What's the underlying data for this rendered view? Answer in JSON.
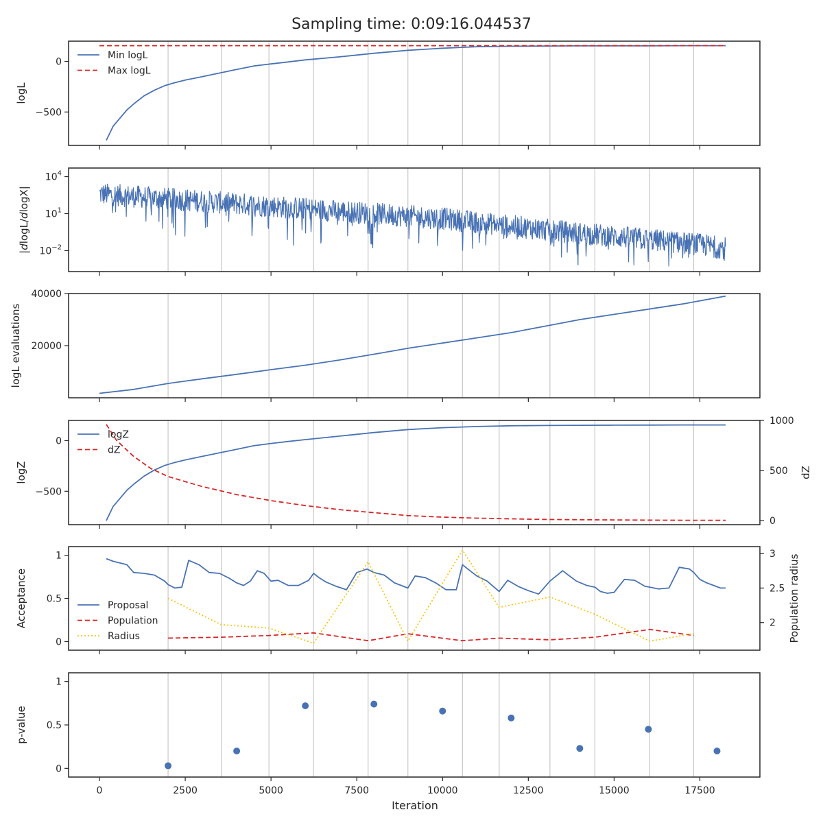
{
  "title": "Sampling time: 0:09:16.044537",
  "x_axis": {
    "label": "Iteration",
    "range": [
      -900,
      19250
    ],
    "ticks": [
      0,
      2500,
      5000,
      7500,
      10000,
      12500,
      15000,
      17500
    ]
  },
  "vlines": [
    2000,
    3550,
    4940,
    6240,
    7830,
    8990,
    10580,
    11650,
    13130,
    14440,
    16040,
    17320
  ],
  "colors": {
    "blue": "#4872b4",
    "red": "#d62728",
    "yellow": "#f5c518",
    "grid": "#c8c8c8",
    "frame": "#262626"
  },
  "chart_data": [
    {
      "type": "line",
      "ylabel": "logL",
      "ylim": [
        -830,
        200
      ],
      "yticks": [
        0,
        -500
      ],
      "legend": "top-left",
      "series": [
        {
          "name": "Min logL",
          "style": "solid",
          "color": "#4872b4",
          "x": [
            200,
            400,
            800,
            1000,
            1300,
            1600,
            1900,
            2200,
            2500,
            3000,
            3500,
            4000,
            4500,
            5000,
            5500,
            6000,
            7000,
            8000,
            9000,
            10000,
            11000,
            12000,
            13000,
            14000,
            15000,
            16000,
            17000,
            18250
          ],
          "y": [
            -780,
            -640,
            -480,
            -420,
            -340,
            -285,
            -240,
            -210,
            -185,
            -150,
            -115,
            -80,
            -45,
            -25,
            -5,
            15,
            45,
            80,
            110,
            130,
            145,
            150,
            152,
            153,
            154,
            154,
            155,
            155
          ]
        },
        {
          "name": "Max logL",
          "style": "dashed",
          "color": "#d62728",
          "x": [
            0,
            18250
          ],
          "y": [
            155,
            155
          ]
        }
      ]
    },
    {
      "type": "line",
      "ylabel": "|dlogL/dlogX|",
      "yscale": "log",
      "ylim_log10": [
        -3.7,
        4.7
      ],
      "yticks": [
        "10^4",
        "10^1",
        "10^-2"
      ],
      "series": [
        {
          "name": "",
          "style": "noisy",
          "color": "#4872b4",
          "x": [
            0,
            2000,
            4000,
            6000,
            8000,
            10000,
            12000,
            14000,
            16000,
            17500,
            18250
          ],
          "y_center_log10": [
            2.6,
            2.2,
            1.8,
            1.4,
            1.0,
            0.6,
            0.0,
            -0.6,
            -1.1,
            -1.5,
            -1.8
          ]
        }
      ]
    },
    {
      "type": "line",
      "ylabel": "logL evaluations",
      "ylim": [
        0,
        40000
      ],
      "yticks": [
        40000,
        20000
      ],
      "series": [
        {
          "name": "",
          "style": "solid",
          "color": "#4872b4",
          "x": [
            0,
            1000,
            2000,
            3000,
            4000,
            5000,
            6000,
            7000,
            8000,
            9000,
            10000,
            11000,
            12000,
            13000,
            14000,
            15000,
            16000,
            17000,
            18250
          ],
          "y": [
            1700,
            3200,
            5500,
            7300,
            9000,
            10800,
            12500,
            14500,
            16700,
            19000,
            21000,
            23000,
            25000,
            27500,
            30000,
            32000,
            34000,
            36000,
            39000
          ]
        }
      ]
    },
    {
      "type": "line",
      "ylabel": "logZ",
      "ylabel_right": "dZ",
      "ylim": [
        -830,
        200
      ],
      "ylim_right": [
        -40,
        1000
      ],
      "yticks": [
        0,
        -500
      ],
      "yticks_right": [
        1000,
        500,
        0
      ],
      "legend": "top-left",
      "series": [
        {
          "name": "logZ",
          "style": "solid",
          "color": "#4872b4",
          "axis": "left",
          "x": [
            200,
            400,
            800,
            1000,
            1300,
            1600,
            1900,
            2200,
            2500,
            3000,
            3500,
            4000,
            4500,
            5000,
            5500,
            6000,
            7000,
            8000,
            9000,
            10000,
            11000,
            12000,
            13000,
            14000,
            15000,
            16000,
            17000,
            18250
          ],
          "y": [
            -790,
            -650,
            -490,
            -430,
            -350,
            -290,
            -245,
            -215,
            -190,
            -155,
            -120,
            -85,
            -50,
            -28,
            -8,
            10,
            45,
            80,
            110,
            128,
            140,
            147,
            150,
            152,
            153,
            154,
            155,
            155
          ]
        },
        {
          "name": "dZ",
          "style": "dashed",
          "color": "#d62728",
          "axis": "right",
          "x": [
            200,
            500,
            1000,
            1500,
            2000,
            2500,
            3000,
            3500,
            4000,
            5000,
            6000,
            7000,
            8000,
            9000,
            10000,
            11000,
            12000,
            13000,
            14000,
            15000,
            16000,
            17000,
            18250
          ],
          "y": [
            960,
            800,
            640,
            520,
            440,
            390,
            340,
            300,
            260,
            200,
            150,
            110,
            80,
            50,
            35,
            25,
            18,
            12,
            9,
            7,
            5,
            4,
            3
          ]
        }
      ]
    },
    {
      "type": "line",
      "ylabel": "Acceptance",
      "ylabel_right": "Population radius",
      "ylim": [
        -0.1,
        1.1
      ],
      "ylim_right": [
        1.6,
        3.1
      ],
      "yticks": [
        1.0,
        0.5,
        0.0
      ],
      "yticks_right": [
        3.0,
        2.5,
        2.0
      ],
      "legend": "lower-left",
      "series": [
        {
          "name": "Proposal",
          "style": "solid",
          "color": "#4872b4",
          "axis": "left",
          "x": [
            200,
            400,
            600,
            800,
            1000,
            1300,
            1600,
            1900,
            2000,
            2200,
            2400,
            2600,
            2900,
            3200,
            3500,
            3800,
            4000,
            4200,
            4400,
            4600,
            4800,
            5000,
            5200,
            5500,
            5800,
            6100,
            6240,
            6400,
            6600,
            6900,
            7200,
            7500,
            7800,
            8000,
            8300,
            8600,
            8990,
            9200,
            9500,
            9800,
            10100,
            10400,
            10580,
            10800,
            11000,
            11300,
            11650,
            11900,
            12200,
            12500,
            12800,
            13130,
            13500,
            13700,
            13900,
            14200,
            14440,
            14600,
            14800,
            15000,
            15300,
            15600,
            15900,
            16040,
            16300,
            16600,
            16900,
            17200,
            17320,
            17500,
            17700,
            17900,
            18100,
            18250
          ],
          "y": [
            0.96,
            0.93,
            0.91,
            0.89,
            0.8,
            0.79,
            0.77,
            0.7,
            0.66,
            0.62,
            0.63,
            0.94,
            0.89,
            0.8,
            0.79,
            0.73,
            0.68,
            0.65,
            0.7,
            0.82,
            0.79,
            0.7,
            0.71,
            0.65,
            0.65,
            0.71,
            0.79,
            0.74,
            0.69,
            0.64,
            0.6,
            0.8,
            0.84,
            0.8,
            0.77,
            0.68,
            0.62,
            0.76,
            0.74,
            0.68,
            0.6,
            0.6,
            0.89,
            0.82,
            0.76,
            0.7,
            0.58,
            0.71,
            0.64,
            0.59,
            0.55,
            0.7,
            0.82,
            0.76,
            0.7,
            0.65,
            0.63,
            0.58,
            0.56,
            0.57,
            0.72,
            0.71,
            0.64,
            0.63,
            0.61,
            0.62,
            0.86,
            0.84,
            0.8,
            0.72,
            0.68,
            0.65,
            0.62,
            0.62
          ]
        },
        {
          "name": "Population",
          "style": "dashed",
          "color": "#d62728",
          "axis": "left",
          "x": [
            2000,
            3550,
            4940,
            6240,
            7830,
            8990,
            10580,
            11650,
            13130,
            14440,
            16040,
            17320
          ],
          "y": [
            0.04,
            0.05,
            0.07,
            0.1,
            0.01,
            0.09,
            0.01,
            0.04,
            0.02,
            0.05,
            0.14,
            0.07
          ]
        },
        {
          "name": "Radius",
          "style": "dotted",
          "color": "#f5c518",
          "axis": "right",
          "x": [
            2000,
            3550,
            4940,
            6240,
            7830,
            8990,
            10580,
            11650,
            13130,
            14440,
            16040,
            17320
          ],
          "y": [
            2.35,
            1.97,
            1.92,
            1.7,
            2.88,
            1.73,
            3.05,
            2.22,
            2.37,
            2.12,
            1.73,
            1.84
          ]
        }
      ]
    },
    {
      "type": "scatter",
      "ylabel": "p-value",
      "ylim": [
        -0.1,
        1.1
      ],
      "yticks": [
        1.0,
        0.5,
        0.0
      ],
      "series": [
        {
          "name": "",
          "color": "#4872b4",
          "x": [
            2000,
            4000,
            6000,
            8000,
            10000,
            12000,
            14000,
            16000,
            18000
          ],
          "y": [
            0.03,
            0.2,
            0.72,
            0.74,
            0.66,
            0.58,
            0.23,
            0.45,
            0.2
          ]
        }
      ]
    }
  ]
}
